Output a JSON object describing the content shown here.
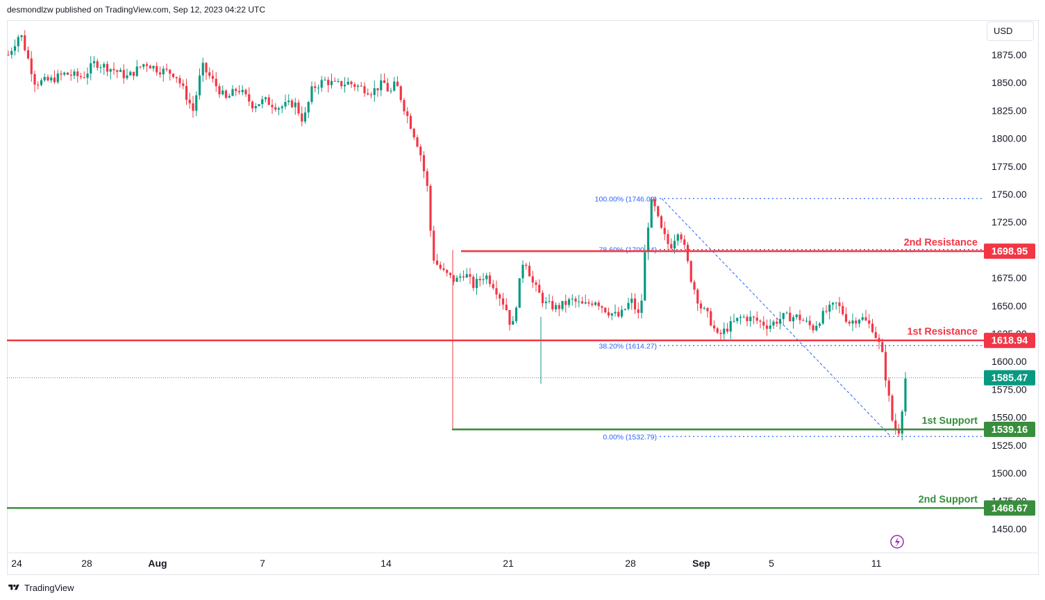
{
  "header": {
    "publisher_line": "desmondlzw published on TradingView.com, Sep 12, 2023 04:22 UTC"
  },
  "toolbar": {
    "currency": "USD"
  },
  "footer": {
    "brand": "TradingView",
    "logo_icon": "tradingview-logo-icon"
  },
  "colors": {
    "up": "#089981",
    "down": "#f23645",
    "resistance": "#f23645",
    "support": "#388e3c",
    "fib": "#2962ff",
    "price": "#089981"
  },
  "chart_data": {
    "type": "candlestick",
    "title": "",
    "xlabel": "",
    "ylabel": "",
    "currency": "USD",
    "ylim": [
      1432,
      1904
    ],
    "grid": false,
    "y_ticks": [
      "1875.00",
      "1850.00",
      "1825.00",
      "1800.00",
      "1775.00",
      "1750.00",
      "1725.00",
      "1700.00",
      "1675.00",
      "1650.00",
      "1625.00",
      "1600.00",
      "1575.00",
      "1550.00",
      "1525.00",
      "1500.00",
      "1475.00",
      "1450.00"
    ],
    "x_ticks": [
      "24",
      "28",
      "Aug",
      "7",
      "14",
      "21",
      "28",
      "Sep",
      "5",
      "11"
    ],
    "bold_x_ticks": [
      "Aug",
      "Sep"
    ],
    "price_path": [
      [
        0,
        1875
      ],
      [
        8,
        1895
      ],
      [
        18,
        1850
      ],
      [
        28,
        1852
      ],
      [
        38,
        1858
      ],
      [
        50,
        1855
      ],
      [
        58,
        1868
      ],
      [
        70,
        1862
      ],
      [
        80,
        1855
      ],
      [
        92,
        1868
      ],
      [
        100,
        1862
      ],
      [
        112,
        1858
      ],
      [
        118,
        1842
      ],
      [
        124,
        1825
      ],
      [
        130,
        1865
      ],
      [
        138,
        1850
      ],
      [
        146,
        1835
      ],
      [
        154,
        1845
      ],
      [
        164,
        1830
      ],
      [
        172,
        1834
      ],
      [
        182,
        1828
      ],
      [
        192,
        1832
      ],
      [
        198,
        1815
      ],
      [
        204,
        1845
      ],
      [
        212,
        1852
      ],
      [
        220,
        1848
      ],
      [
        228,
        1850
      ],
      [
        236,
        1846
      ],
      [
        244,
        1842
      ],
      [
        252,
        1850
      ],
      [
        256,
        1840
      ],
      [
        260,
        1850
      ],
      [
        265,
        1830
      ],
      [
        270,
        1812
      ],
      [
        276,
        1790
      ],
      [
        282,
        1750
      ],
      [
        284,
        1700
      ],
      [
        286,
        1690
      ],
      [
        292,
        1680
      ],
      [
        300,
        1672
      ],
      [
        306,
        1680
      ],
      [
        312,
        1668
      ],
      [
        320,
        1678
      ],
      [
        326,
        1668
      ],
      [
        334,
        1648
      ],
      [
        338,
        1628
      ],
      [
        342,
        1662
      ],
      [
        346,
        1695
      ],
      [
        352,
        1670
      ],
      [
        360,
        1652
      ],
      [
        368,
        1648
      ],
      [
        378,
        1655
      ],
      [
        386,
        1650
      ],
      [
        394,
        1655
      ],
      [
        402,
        1645
      ],
      [
        410,
        1640
      ],
      [
        418,
        1655
      ],
      [
        424,
        1638
      ],
      [
        428,
        1712
      ],
      [
        432,
        1745
      ],
      [
        438,
        1718
      ],
      [
        444,
        1702
      ],
      [
        450,
        1720
      ],
      [
        454,
        1700
      ],
      [
        458,
        1675
      ],
      [
        464,
        1650
      ],
      [
        470,
        1640
      ],
      [
        476,
        1622
      ],
      [
        484,
        1632
      ],
      [
        492,
        1640
      ],
      [
        500,
        1638
      ],
      [
        510,
        1632
      ],
      [
        520,
        1640
      ],
      [
        530,
        1640
      ],
      [
        540,
        1630
      ],
      [
        548,
        1644
      ],
      [
        556,
        1652
      ],
      [
        564,
        1635
      ],
      [
        572,
        1640
      ],
      [
        580,
        1630
      ],
      [
        586,
        1610
      ],
      [
        590,
        1575
      ],
      [
        594,
        1540
      ],
      [
        598,
        1538
      ],
      [
        602,
        1585
      ]
    ],
    "last_price": 1585.47,
    "levels": [
      {
        "label": "2nd Resistance",
        "value": 1698.95,
        "value_text": "1698.95",
        "kind": "resistance"
      },
      {
        "label": "1st Resistance",
        "value": 1618.94,
        "value_text": "1618.94",
        "kind": "resistance"
      },
      {
        "label": "1st Support",
        "value": 1539.16,
        "value_text": "1539.16",
        "kind": "support"
      },
      {
        "label": "2nd Support",
        "value": 1468.67,
        "value_text": "1468.67",
        "kind": "support"
      }
    ],
    "last_price_text": "1585.47",
    "fibonacci": [
      {
        "label": "100.00% (1746.09)",
        "value": 1746.09
      },
      {
        "label": "78.60% (1700.44)",
        "value": 1700.44
      },
      {
        "label": "38.20% (1614.27)",
        "value": 1614.27
      },
      {
        "label": "0.00% (1532.79)",
        "value": 1532.79
      }
    ],
    "fib_trendline": [
      [
        1746.09,
        "Aug 30"
      ],
      [
        1532.79,
        "Sep 11"
      ]
    ]
  }
}
